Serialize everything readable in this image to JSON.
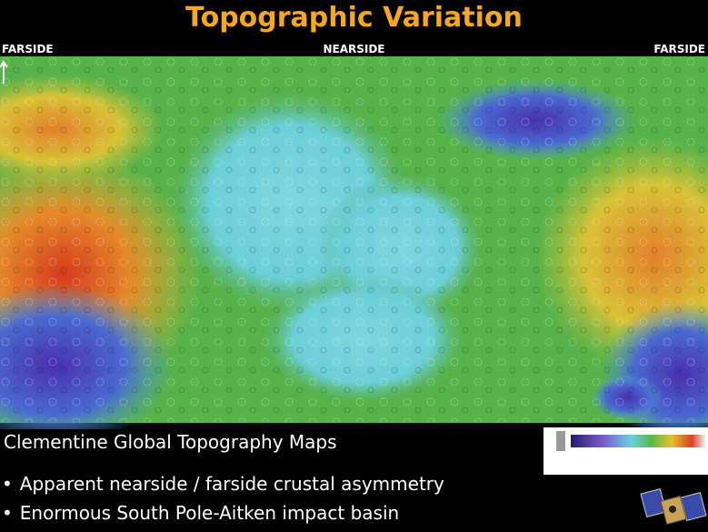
{
  "header": {
    "title": "Topographic Variation"
  },
  "map": {
    "left_label": "FARSIDE",
    "center_label": "NEARSIDE",
    "right_label": "FARSIDE"
  },
  "caption": "Clementine Global Topography Maps",
  "bullets": [
    "Apparent nearside  / farside crustal asymmetry",
    "Enormous South Pole-Aitken impact basin"
  ]
}
